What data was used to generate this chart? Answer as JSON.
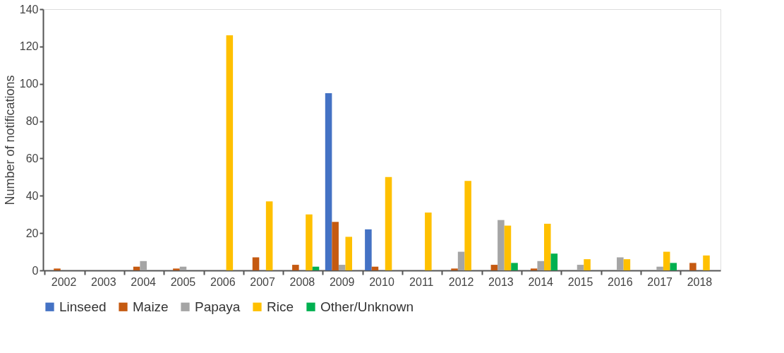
{
  "chart_data": {
    "type": "bar",
    "ylabel": "Number of notifications",
    "categories": [
      "2002",
      "2003",
      "2004",
      "2005",
      "2006",
      "2007",
      "2008",
      "2009",
      "2010",
      "2011",
      "2012",
      "2013",
      "2014",
      "2015",
      "2016",
      "2017",
      "2018"
    ],
    "series": [
      {
        "name": "Linseed",
        "color": "#4472c4",
        "values": [
          0,
          0,
          0,
          0,
          0,
          0,
          0,
          95,
          22,
          0,
          0,
          0,
          0,
          0,
          0,
          0,
          0
        ]
      },
      {
        "name": "Maize",
        "color": "#c55a11",
        "values": [
          1,
          0,
          2,
          1,
          0,
          7,
          3,
          26,
          2,
          0,
          1,
          3,
          1,
          0,
          0,
          0,
          4
        ]
      },
      {
        "name": "Papaya",
        "color": "#a5a5a5",
        "values": [
          0,
          0,
          5,
          2,
          0,
          0,
          0,
          3,
          0,
          0,
          10,
          27,
          5,
          3,
          7,
          2,
          0
        ]
      },
      {
        "name": "Rice",
        "color": "#ffc000",
        "values": [
          0,
          0,
          0,
          0,
          126,
          37,
          30,
          18,
          50,
          31,
          48,
          24,
          25,
          6,
          6,
          10,
          8
        ]
      },
      {
        "name": "Other/Unknown",
        "color": "#00b050",
        "values": [
          0,
          0,
          0,
          0,
          0,
          0,
          2,
          0,
          0,
          0,
          0,
          4,
          9,
          0,
          0,
          4,
          0
        ]
      }
    ],
    "ylim": [
      0,
      140
    ],
    "yticks": [
      0,
      20,
      40,
      60,
      80,
      100,
      120,
      140
    ],
    "grid": false,
    "legend": "bottom"
  }
}
